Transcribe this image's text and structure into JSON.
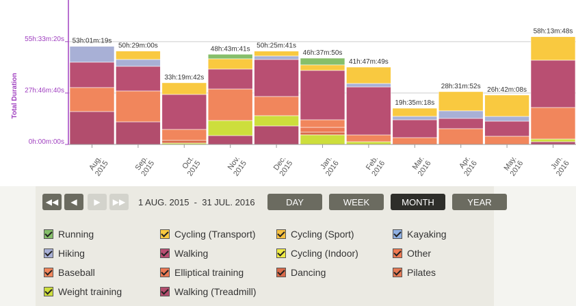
{
  "chart_data": {
    "type": "stacked_bar",
    "y_label": "Total Duration",
    "categories": [
      "Aug. 2015",
      "Sep. 2015",
      "Oct. 2015",
      "Nov. 2015",
      "Dec. 2015",
      "Jan. 2016",
      "Feb. 2016",
      "Mar. 2016",
      "Apr. 2016",
      "May. 2016",
      "Jun. 2016"
    ],
    "ylim": [
      0,
      281000
    ],
    "yticks": [
      {
        "value": 0,
        "label": "0h:00m:00s"
      },
      {
        "value": 100000,
        "label": "27h:46m:40s"
      },
      {
        "value": 200000,
        "label": "55h:33m:20s"
      }
    ],
    "grid": true,
    "totals": [
      {
        "value": 190879,
        "label": "53h:01m:19s"
      },
      {
        "value": 181740,
        "label": "50h:29m:00s"
      },
      {
        "value": 119982,
        "label": "33h:19m:42s"
      },
      {
        "value": 175421,
        "label": "48h:43m:41s"
      },
      {
        "value": 181541,
        "label": "50h:25m:41s"
      },
      {
        "value": 167870,
        "label": "46h:37m:50s"
      },
      {
        "value": 150469,
        "label": "41h:47m:49s"
      },
      {
        "value": 70518,
        "label": "19h:35m:18s"
      },
      {
        "value": 102712,
        "label": "28h:31m:52s"
      },
      {
        "value": 96128,
        "label": "26h:42m:08s"
      },
      {
        "value": 209628,
        "label": "58h:13m:48s"
      }
    ],
    "series": [
      {
        "name": "Running",
        "color": "#86bf6a",
        "values": [
          0,
          0,
          0,
          8821,
          0,
          13170,
          0,
          0,
          0,
          0,
          0
        ]
      },
      {
        "name": "Cycling (Transport)",
        "color": "#f9c940",
        "values": [
          0,
          16440,
          22682,
          20000,
          9541,
          10700,
          31869,
          15818,
          37312,
          41528,
          45728
        ]
      },
      {
        "name": "Cycling (Sport)",
        "color": "#f5c040",
        "values": [
          0,
          0,
          0,
          0,
          0,
          0,
          0,
          0,
          0,
          0,
          0
        ]
      },
      {
        "name": "Kayaking",
        "color": "#8fb0e2",
        "values": [
          0,
          0,
          0,
          0,
          0,
          0,
          0,
          0,
          0,
          0,
          0
        ]
      },
      {
        "name": "Hiking",
        "color": "#a8b0d6",
        "values": [
          30879,
          13300,
          0,
          0,
          6700,
          0,
          6700,
          6700,
          14700,
          9300,
          0
        ]
      },
      {
        "name": "Walking",
        "color": "#b94f72",
        "values": [
          49300,
          48000,
          68000,
          38700,
          72000,
          96000,
          93300,
          34700,
          20000,
          29300,
          92000
        ]
      },
      {
        "name": "Cycling (Indoor)",
        "color": "#eeea44",
        "values": [
          0,
          0,
          0,
          0,
          0,
          0,
          0,
          0,
          0,
          0,
          0
        ]
      },
      {
        "name": "Other",
        "color": "#ee7a52",
        "values": [
          0,
          0,
          0,
          0,
          0,
          0,
          0,
          0,
          0,
          0,
          0
        ]
      },
      {
        "name": "Baseball",
        "color": "#f1865c",
        "values": [
          46700,
          60000,
          21300,
          61300,
          37300,
          14700,
          13300,
          13300,
          30700,
          16000,
          61300
        ]
      },
      {
        "name": "Elliptical training",
        "color": "#ec7a55",
        "values": [
          0,
          0,
          0,
          0,
          0,
          9300,
          0,
          0,
          0,
          0,
          0
        ]
      },
      {
        "name": "Dancing",
        "color": "#d86a4a",
        "values": [
          0,
          0,
          5300,
          0,
          0,
          5300,
          0,
          0,
          0,
          0,
          0
        ]
      },
      {
        "name": "Pilates",
        "color": "#e57a55",
        "values": [
          0,
          0,
          0,
          0,
          0,
          0,
          0,
          0,
          0,
          0,
          0
        ]
      },
      {
        "name": "Weight training",
        "color": "#cdde3c",
        "values": [
          0,
          0,
          2700,
          29300,
          20000,
          18700,
          5300,
          0,
          0,
          0,
          5300
        ]
      },
      {
        "name": "Walking (Treadmill)",
        "color": "#b24d6d",
        "values": [
          64000,
          44000,
          0,
          17300,
          36000,
          0,
          0,
          0,
          0,
          0,
          5300
        ]
      }
    ]
  },
  "controls": {
    "range": "1 AUG. 2015  -  31 JUL. 2016",
    "buttons": [
      "DAY",
      "WEEK",
      "MONTH",
      "YEAR"
    ],
    "active": 2
  }
}
